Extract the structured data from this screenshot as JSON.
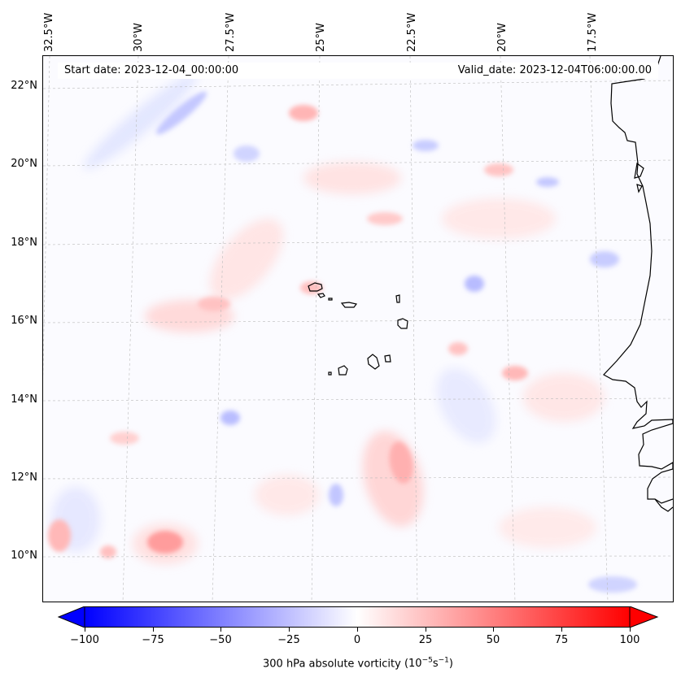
{
  "map": {
    "start_date": "Start date: 2023-12-04_00:00:00",
    "valid_date": "Valid_date: 2023-12-04T06:00:00.00",
    "longitude_labels": [
      "32.5°W",
      "30°W",
      "27.5°W",
      "25°W",
      "22.5°W",
      "20°W",
      "17.5°W"
    ],
    "latitude_labels": [
      "22°N",
      "20°N",
      "18°N",
      "16°N",
      "14°N",
      "12°N",
      "10°N"
    ],
    "field": "300 hPa absolute vorticity",
    "units_scale": "(10",
    "units_exp1": "−5",
    "units_mid": "s",
    "units_exp2": "−1",
    "units_close": ")",
    "features": [
      "Cabo Verde islands",
      "West African coastline"
    ]
  },
  "colorbar": {
    "min": -100,
    "max": 100,
    "tick_labels": [
      "−100",
      "−75",
      "−50",
      "−25",
      "0",
      "25",
      "50",
      "75",
      "100"
    ],
    "colormap": "bwr",
    "colors": {
      "negative": "#0000ff",
      "neutral": "#ffffff",
      "positive": "#ff0000"
    }
  }
}
